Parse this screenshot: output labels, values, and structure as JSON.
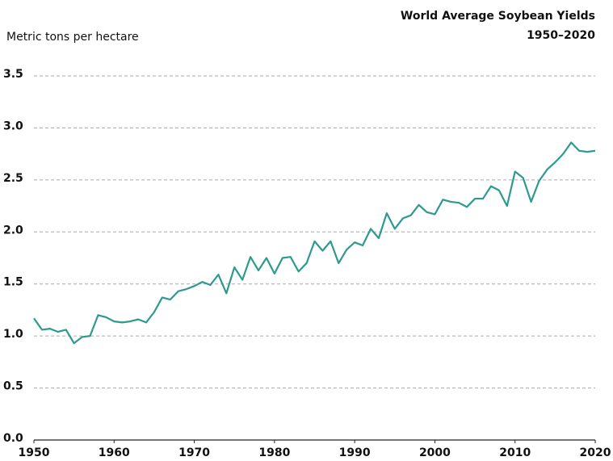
{
  "chart_data": {
    "type": "line",
    "title": "World Average Soybean Yields",
    "subtitle": "1950–2020",
    "y_label": "Metric tons per hectare",
    "x": [
      1950,
      1951,
      1952,
      1953,
      1954,
      1955,
      1956,
      1957,
      1958,
      1959,
      1960,
      1961,
      1962,
      1963,
      1964,
      1965,
      1966,
      1967,
      1968,
      1969,
      1970,
      1971,
      1972,
      1973,
      1974,
      1975,
      1976,
      1977,
      1978,
      1979,
      1980,
      1981,
      1982,
      1983,
      1984,
      1985,
      1986,
      1987,
      1988,
      1989,
      1990,
      1991,
      1992,
      1993,
      1994,
      1995,
      1996,
      1997,
      1998,
      1999,
      2000,
      2001,
      2002,
      2003,
      2004,
      2005,
      2006,
      2007,
      2008,
      2009,
      2010,
      2011,
      2012,
      2013,
      2014,
      2015,
      2016,
      2017,
      2018,
      2019,
      2020
    ],
    "series": [
      {
        "color": "#2e9a8e",
        "values": [
          1.17,
          1.06,
          1.07,
          1.04,
          1.06,
          0.93,
          0.99,
          1.0,
          1.2,
          1.18,
          1.14,
          1.13,
          1.14,
          1.16,
          1.13,
          1.23,
          1.37,
          1.35,
          1.43,
          1.45,
          1.48,
          1.52,
          1.49,
          1.59,
          1.41,
          1.66,
          1.54,
          1.76,
          1.63,
          1.75,
          1.6,
          1.75,
          1.76,
          1.62,
          1.7,
          1.91,
          1.82,
          1.91,
          1.7,
          1.83,
          1.9,
          1.87,
          2.03,
          1.94,
          2.18,
          2.03,
          2.13,
          2.16,
          2.26,
          2.19,
          2.17,
          2.31,
          2.29,
          2.28,
          2.24,
          2.32,
          2.32,
          2.44,
          2.4,
          2.25,
          2.58,
          2.52,
          2.29,
          2.49,
          2.6,
          2.67,
          2.75,
          2.86,
          2.78,
          2.77,
          2.78
        ]
      }
    ],
    "xlim": [
      1950,
      2020
    ],
    "xticks": [
      1950,
      1960,
      1970,
      1980,
      1990,
      2000,
      2010,
      2020
    ],
    "ylim": [
      0,
      3.5
    ],
    "yticks": [
      {
        "value": 0,
        "label": "0.0"
      },
      0.5,
      {
        "value": 1,
        "label": "1.0"
      },
      1.5,
      {
        "value": 2,
        "label": "2.0"
      },
      2.5,
      {
        "value": 3,
        "label": "3.0"
      },
      3.5
    ],
    "grid": true
  }
}
